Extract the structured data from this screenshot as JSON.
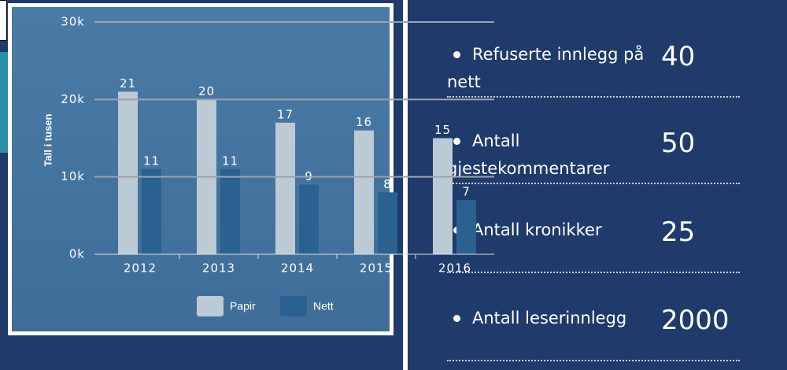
{
  "chart_data": {
    "type": "bar",
    "y_label": "Tall i tusen",
    "categories": [
      "2012",
      "2013",
      "2014",
      "2015",
      "2016"
    ],
    "series": [
      {
        "name": "Papir",
        "color": "#bccad6",
        "values": [
          21,
          20,
          17,
          16,
          15
        ]
      },
      {
        "name": "Nett",
        "color": "#2a6190",
        "values": [
          11,
          11,
          9,
          8,
          7
        ]
      }
    ],
    "ylim": [
      0,
      30
    ],
    "yticks": [
      {
        "value": 0,
        "label": "0k"
      },
      {
        "value": 10,
        "label": "10k"
      },
      {
        "value": 20,
        "label": "20k"
      },
      {
        "value": 30,
        "label": "30k"
      }
    ],
    "grid": true
  },
  "stats": [
    {
      "label": "Refuserte innlegg på nett",
      "value": "40"
    },
    {
      "label": "Antall gjestekommentarer",
      "value": "50"
    },
    {
      "label": "Antall kronikker",
      "value": "25"
    },
    {
      "label": "Antall leserinnlegg",
      "value": "2000"
    }
  ]
}
